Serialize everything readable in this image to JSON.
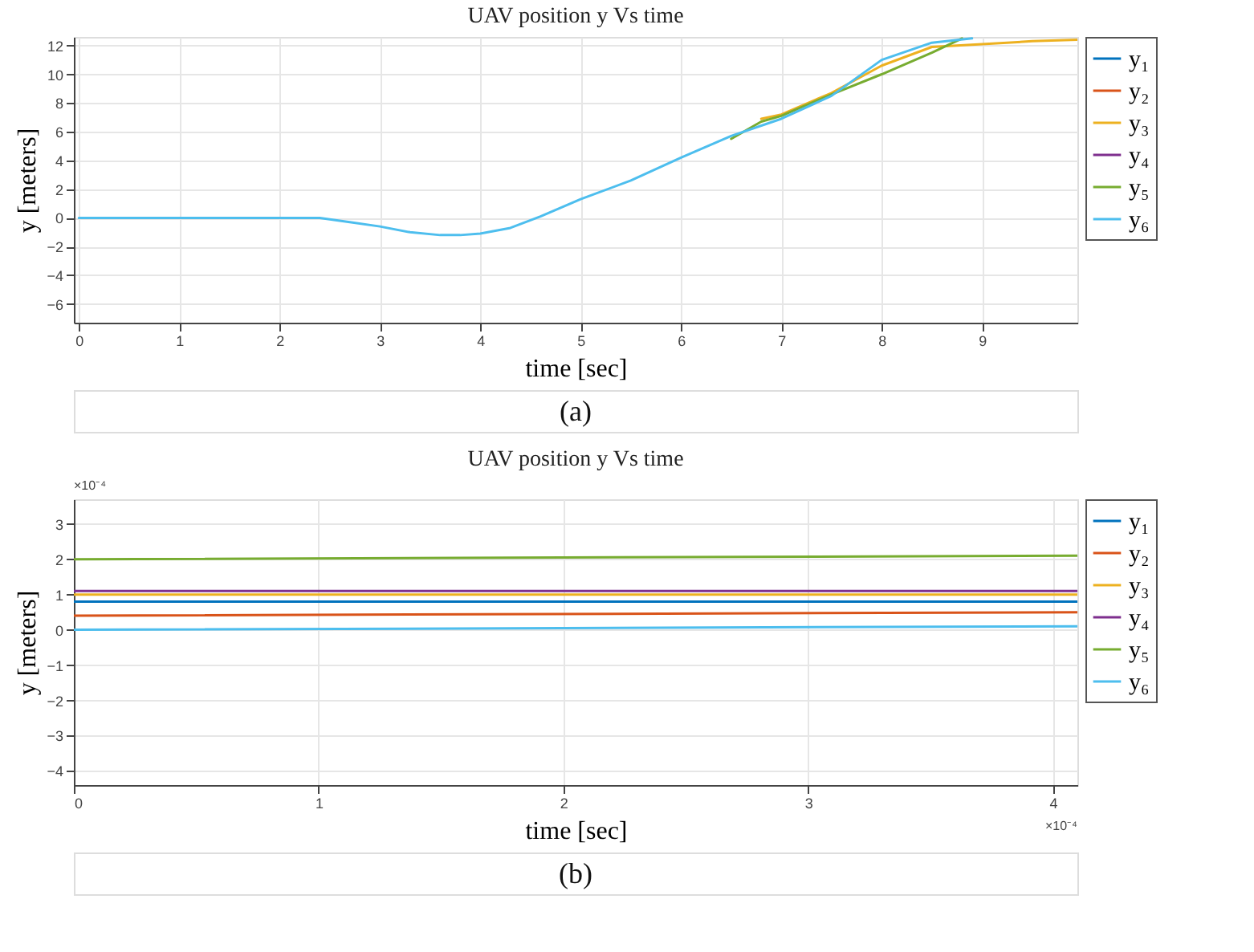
{
  "chart_data": [
    {
      "type": "line",
      "title": "UAV position y Vs time",
      "xlabel": "time [sec]",
      "ylabel": "y [meters]",
      "xlim": [
        -0.05,
        9.95
      ],
      "ylim": [
        -7.3,
        12.6
      ],
      "xticks": [
        0,
        1,
        2,
        3,
        4,
        5,
        6,
        7,
        8,
        9
      ],
      "yticks": [
        -6,
        -4,
        -2,
        0,
        2,
        4,
        6,
        8,
        10,
        12
      ],
      "grid": true,
      "legend": "top right",
      "line_style": "solid",
      "marker": "none",
      "annotations": [
        "(a)"
      ],
      "series": [
        {
          "name": "y₁",
          "color": "#0072bd"
        },
        {
          "name": "y₂",
          "color": "#d95319"
        },
        {
          "name": "y₃",
          "color": "#edb120",
          "x": [
            6.8,
            7,
            7.5,
            8,
            8.5,
            9,
            9.5,
            9.95
          ],
          "values": [
            6.9,
            7.2,
            8.7,
            10.6,
            11.9,
            12.1,
            12.3,
            12.4
          ]
        },
        {
          "name": "y₄",
          "color": "#7e2f8e"
        },
        {
          "name": "y₅",
          "color": "#77ac30",
          "x": [
            6.5,
            6.8,
            7,
            7.5,
            8,
            8.5,
            8.8
          ],
          "values": [
            5.5,
            6.7,
            7.1,
            8.6,
            10.0,
            11.5,
            12.5
          ]
        },
        {
          "name": "y₆",
          "color": "#4dbeee",
          "x": [
            0,
            1,
            2,
            2.4,
            2.7,
            3,
            3.3,
            3.6,
            3.8,
            4,
            4.3,
            4.6,
            5,
            5.5,
            6,
            6.5,
            7,
            7.5,
            8,
            8.5,
            8.9
          ],
          "values": [
            0,
            0,
            0,
            0,
            -0.3,
            -0.6,
            -1.0,
            -1.2,
            -1.2,
            -1.1,
            -0.7,
            0.1,
            1.3,
            2.6,
            4.2,
            5.7,
            6.9,
            8.5,
            11.0,
            12.2,
            12.5
          ]
        }
      ]
    },
    {
      "type": "line",
      "title": "UAV position y Vs time",
      "xlabel": "time [sec]",
      "ylabel": "y [meters]",
      "xlim": [
        0,
        4.1
      ],
      "ylim": [
        -4.4,
        3.7
      ],
      "xticks": [
        0,
        1,
        2,
        3,
        4
      ],
      "yticks": [
        -4,
        -3,
        -2,
        -1,
        0,
        1,
        2,
        3
      ],
      "grid": true,
      "legend": "top right",
      "line_style": "solid",
      "marker": "none",
      "annotations": [
        "×10⁻⁴",
        "×10⁻⁴",
        "(b)"
      ],
      "series": [
        {
          "name": "y₁",
          "color": "#0072bd",
          "x": [
            0,
            4.1
          ],
          "values": [
            0.8,
            0.8
          ]
        },
        {
          "name": "y₂",
          "color": "#d95319",
          "x": [
            0,
            4.1
          ],
          "values": [
            0.4,
            0.5
          ]
        },
        {
          "name": "y₃",
          "color": "#edb120",
          "x": [
            0,
            4.1
          ],
          "values": [
            1.0,
            1.0
          ]
        },
        {
          "name": "y₄",
          "color": "#7e2f8e",
          "x": [
            0,
            4.1
          ],
          "values": [
            1.1,
            1.1
          ]
        },
        {
          "name": "y₅",
          "color": "#77ac30",
          "x": [
            0,
            4.1
          ],
          "values": [
            2.0,
            2.1
          ]
        },
        {
          "name": "y₆",
          "color": "#4dbeee",
          "x": [
            0,
            4.1
          ],
          "values": [
            0.0,
            0.1
          ]
        }
      ]
    }
  ]
}
